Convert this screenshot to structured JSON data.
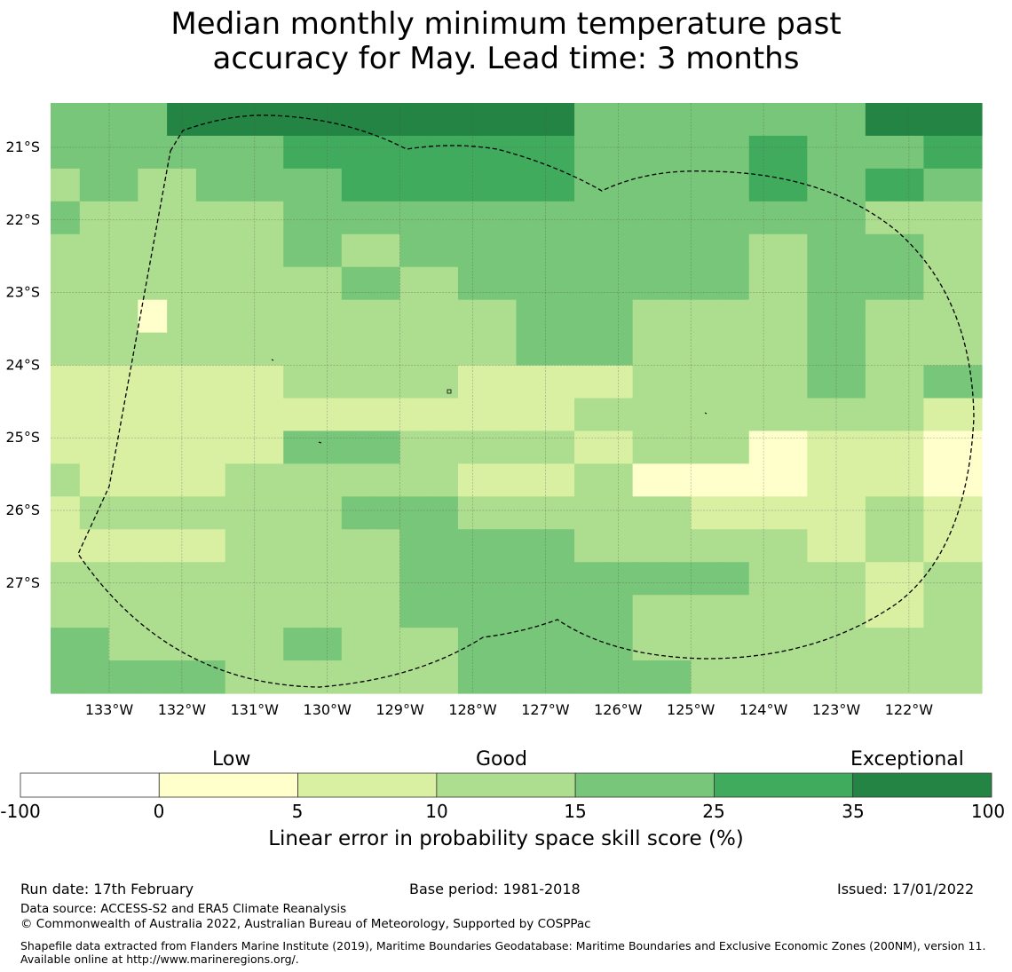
{
  "title": {
    "line1": "Median monthly minimum temperature past",
    "line2": "accuracy for May. Lead time: 3 months"
  },
  "map": {
    "lon_labels": [
      "133°W",
      "132°W",
      "131°W",
      "130°W",
      "129°W",
      "128°W",
      "127°W",
      "126°W",
      "125°W",
      "124°W",
      "123°W",
      "122°W"
    ],
    "lat_labels": [
      "21°S",
      "22°S",
      "23°S",
      "24°S",
      "25°S",
      "26°S",
      "27°S"
    ],
    "colors": {
      "c0": "#ffffcc",
      "c1": "#d9f0a3",
      "c2": "#addd8e",
      "c3": "#78c679",
      "c4": "#41ab5d",
      "c5": "#238443"
    },
    "grid_rows": [
      [
        3,
        3,
        3,
        3,
        5,
        5,
        5,
        5,
        5,
        5,
        5,
        5,
        5,
        5,
        5,
        5,
        5,
        5,
        3,
        3,
        3,
        3,
        3,
        3,
        3,
        3,
        3,
        3,
        5,
        5,
        5,
        5
      ],
      [
        3,
        3,
        3,
        3,
        3,
        3,
        3,
        3,
        4,
        4,
        4,
        4,
        4,
        4,
        4,
        4,
        4,
        4,
        3,
        3,
        3,
        3,
        3,
        3,
        4,
        4,
        3,
        3,
        3,
        3,
        4,
        4
      ],
      [
        2,
        3,
        3,
        2,
        2,
        3,
        3,
        3,
        3,
        3,
        4,
        4,
        4,
        4,
        4,
        4,
        4,
        4,
        3,
        3,
        3,
        3,
        3,
        3,
        4,
        4,
        3,
        3,
        4,
        4,
        3,
        3
      ],
      [
        3,
        2,
        2,
        2,
        2,
        2,
        2,
        2,
        3,
        3,
        3,
        3,
        3,
        3,
        3,
        3,
        3,
        3,
        3,
        3,
        3,
        3,
        3,
        3,
        3,
        3,
        3,
        3,
        2,
        2,
        2,
        2
      ],
      [
        2,
        2,
        2,
        2,
        2,
        2,
        2,
        2,
        3,
        3,
        2,
        2,
        3,
        3,
        3,
        3,
        3,
        3,
        3,
        3,
        3,
        3,
        3,
        3,
        2,
        2,
        3,
        3,
        3,
        3,
        2,
        2
      ],
      [
        2,
        2,
        2,
        2,
        2,
        2,
        2,
        2,
        2,
        2,
        3,
        3,
        2,
        2,
        3,
        3,
        3,
        3,
        3,
        3,
        3,
        3,
        3,
        3,
        2,
        2,
        3,
        3,
        3,
        3,
        2,
        2
      ],
      [
        2,
        2,
        2,
        0,
        2,
        2,
        2,
        2,
        2,
        2,
        2,
        2,
        2,
        2,
        2,
        2,
        3,
        3,
        3,
        3,
        2,
        2,
        2,
        2,
        2,
        2,
        3,
        3,
        2,
        2,
        2,
        2
      ],
      [
        2,
        2,
        2,
        2,
        2,
        2,
        2,
        2,
        2,
        2,
        2,
        2,
        2,
        2,
        2,
        2,
        3,
        3,
        3,
        3,
        2,
        2,
        2,
        2,
        2,
        2,
        3,
        3,
        2,
        2,
        2,
        2
      ],
      [
        1,
        1,
        1,
        1,
        1,
        1,
        1,
        1,
        2,
        2,
        2,
        2,
        2,
        2,
        1,
        1,
        1,
        1,
        1,
        1,
        2,
        2,
        2,
        2,
        2,
        2,
        3,
        3,
        2,
        2,
        3,
        3
      ],
      [
        1,
        1,
        1,
        1,
        1,
        1,
        1,
        1,
        1,
        1,
        1,
        1,
        1,
        1,
        1,
        1,
        1,
        1,
        2,
        2,
        2,
        2,
        2,
        2,
        2,
        2,
        2,
        2,
        2,
        2,
        1,
        1
      ],
      [
        1,
        1,
        1,
        1,
        1,
        1,
        1,
        1,
        3,
        3,
        3,
        3,
        2,
        2,
        2,
        2,
        2,
        2,
        1,
        1,
        2,
        2,
        2,
        2,
        0,
        0,
        1,
        1,
        1,
        1,
        0,
        0
      ],
      [
        2,
        1,
        1,
        1,
        1,
        1,
        2,
        2,
        2,
        2,
        2,
        2,
        2,
        2,
        1,
        1,
        1,
        1,
        2,
        2,
        0,
        0,
        0,
        0,
        0,
        0,
        1,
        1,
        1,
        1,
        0,
        0
      ],
      [
        1,
        2,
        2,
        2,
        2,
        2,
        2,
        2,
        2,
        2,
        3,
        3,
        3,
        3,
        2,
        2,
        2,
        2,
        2,
        2,
        2,
        2,
        1,
        1,
        1,
        1,
        1,
        1,
        2,
        2,
        1,
        1
      ],
      [
        1,
        1,
        1,
        1,
        1,
        1,
        2,
        2,
        2,
        2,
        2,
        2,
        3,
        3,
        3,
        3,
        3,
        3,
        2,
        2,
        2,
        2,
        2,
        2,
        2,
        2,
        1,
        1,
        2,
        2,
        1,
        1
      ],
      [
        2,
        2,
        2,
        2,
        2,
        2,
        2,
        2,
        2,
        2,
        2,
        2,
        3,
        3,
        3,
        3,
        3,
        3,
        3,
        3,
        3,
        3,
        3,
        3,
        2,
        2,
        2,
        2,
        1,
        1,
        2,
        2
      ],
      [
        2,
        2,
        2,
        2,
        2,
        2,
        2,
        2,
        2,
        2,
        2,
        2,
        3,
        3,
        3,
        3,
        3,
        3,
        3,
        3,
        2,
        2,
        2,
        2,
        2,
        2,
        2,
        2,
        1,
        1,
        2,
        2
      ],
      [
        3,
        3,
        2,
        2,
        2,
        2,
        2,
        2,
        3,
        3,
        2,
        2,
        2,
        2,
        3,
        3,
        3,
        3,
        3,
        3,
        2,
        2,
        2,
        2,
        2,
        2,
        2,
        2,
        2,
        2,
        2,
        2
      ],
      [
        3,
        3,
        3,
        3,
        3,
        3,
        2,
        2,
        2,
        2,
        2,
        2,
        2,
        2,
        3,
        3,
        3,
        3,
        3,
        3,
        3,
        3,
        2,
        2,
        2,
        2,
        2,
        2,
        2,
        2,
        2,
        2
      ]
    ]
  },
  "colorbar": {
    "qualitative": [
      "Low",
      "Good",
      "Exceptional"
    ],
    "ticks": [
      "-100",
      "0",
      "5",
      "10",
      "15",
      "25",
      "35",
      "100"
    ],
    "colors": [
      "#ffffff",
      "#ffffcc",
      "#d9f0a3",
      "#addd8e",
      "#78c679",
      "#41ab5d",
      "#238443"
    ],
    "label": "Linear error in probability space skill score (%)"
  },
  "footer": {
    "run_date": "Run date: 17th February",
    "base_period": "Base period: 1981-2018",
    "issued": "Issued: 17/01/2022",
    "data_source": "Data source: ACCESS-S2 and ERA5 Climate Reanalysis",
    "copyright": "© Commonwealth of Australia 2022, Australian Bureau of Meteorology, Supported by COSPPac",
    "shapefile": "Shapefile data extracted from Flanders Marine Institute (2019), Maritime Boundaries Geodatabase: Maritime Boundaries and Exclusive Economic Zones (200NM), version 11. Available online at http://www.marineregions.org/."
  }
}
